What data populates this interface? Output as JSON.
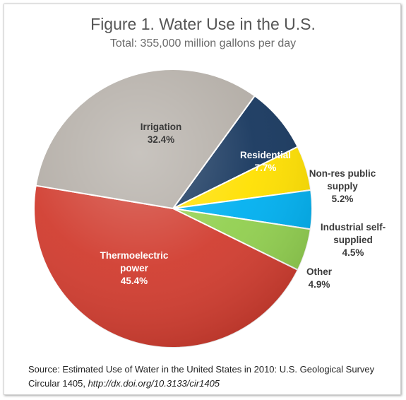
{
  "chart_data": {
    "type": "pie",
    "title": "Figure 1. Water Use in the U.S.",
    "subtitle": "Total: 355,000 million gallons per day",
    "unit": "%",
    "slices": [
      {
        "label": "Residential",
        "value": 7.7,
        "display": "7.7%",
        "color": "#17375e"
      },
      {
        "label": "Non-res public supply",
        "value": 5.2,
        "display": "5.2%",
        "color": "#ffe000"
      },
      {
        "label": "Industrial self-supplied",
        "value": 4.5,
        "display": "4.5%",
        "color": "#00b0f0"
      },
      {
        "label": "Other",
        "value": 4.9,
        "display": "4.9%",
        "color": "#92d050"
      },
      {
        "label": "Thermoelectric power",
        "value": 45.4,
        "display": "45.4%",
        "color": "#d13d30"
      },
      {
        "label": "Irrigation",
        "value": 32.4,
        "display": "32.4%",
        "color": "#b3ada6"
      }
    ],
    "start_angle_deg": 36,
    "direction": "clockwise",
    "label_colors": {
      "Residential": "#ffffff",
      "Thermoelectric power": "#ffffff",
      "Irrigation": "#3a3a3a",
      "outside": "#3a3a3a"
    },
    "label_lines": {
      "Residential": [
        "Residential",
        "7.7%"
      ],
      "Non-res public supply": [
        "Non-res public",
        "supply",
        "5.2%"
      ],
      "Industrial self-supplied": [
        "Industrial self-",
        "supplied",
        "4.5%"
      ],
      "Other": [
        "Other",
        "4.9%"
      ],
      "Thermoelectric power": [
        "Thermoelectric",
        "power",
        "45.4%"
      ],
      "Irrigation": [
        "Irrigation",
        "32.4%"
      ]
    }
  },
  "source": {
    "text": "Source: Estimated Use of Water in the United States in 2010:  U.S. Geological Survey Circular 1405,",
    "url": "http://dx.doi.org/10.3133/cir1405"
  }
}
